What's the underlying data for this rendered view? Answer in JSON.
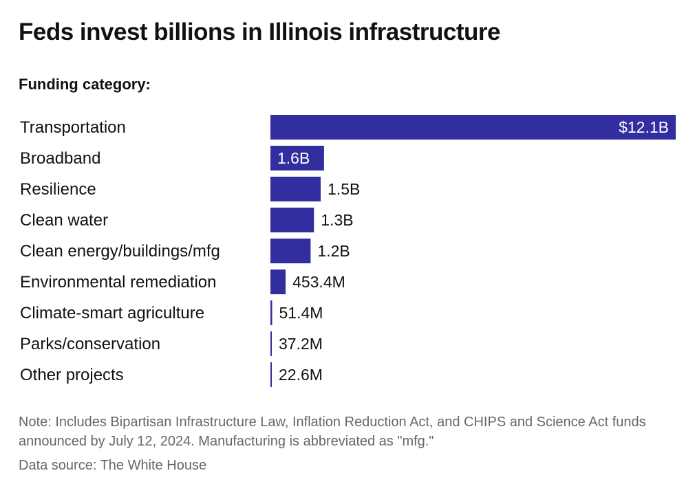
{
  "header": {
    "title": "Feds invest billions in Illinois infrastructure",
    "subtitle": "Funding category:"
  },
  "footer": {
    "note": "Note: Includes Bipartisan Infrastructure Law, Inflation Reduction Act, and CHIPS and Science Act funds announced by July 12, 2024. Manufacturing is abbreviated as \"mfg.\"",
    "source": "Data source: The White House"
  },
  "colors": {
    "bar": "#332ea0",
    "label_inside": "#ffffff",
    "label_outside": "#111111"
  },
  "chart_data": {
    "type": "bar",
    "orientation": "horizontal",
    "title": "Feds invest billions in Illinois infrastructure",
    "subtitle": "Funding category:",
    "xlabel": "",
    "ylabel": "",
    "units": "USD",
    "grid": false,
    "legend": "none",
    "xlim": [
      0,
      12100000000
    ],
    "categories": [
      "Transportation",
      "Broadband",
      "Resilience",
      "Clean water",
      "Clean energy/buildings/mfg",
      "Environmental remediation",
      "Climate-smart agriculture",
      "Parks/conservation",
      "Other projects"
    ],
    "values": [
      12100000000,
      1600000000,
      1500000000,
      1300000000,
      1200000000,
      453400000,
      51400000,
      37200000,
      22600000
    ],
    "data_labels": [
      "$12.1B",
      "1.6B",
      "1.5B",
      "1.3B",
      "1.2B",
      "453.4M",
      "51.4M",
      "37.2M",
      "22.6M"
    ],
    "label_inside": [
      true,
      true,
      false,
      false,
      false,
      false,
      false,
      false,
      false
    ]
  }
}
